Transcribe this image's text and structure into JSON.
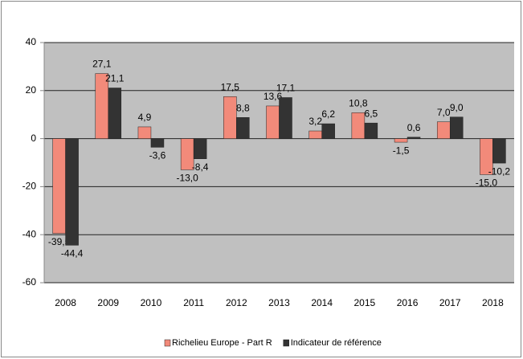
{
  "chart_data": {
    "type": "bar",
    "categories": [
      "2008",
      "2009",
      "2010",
      "2011",
      "2012",
      "2013",
      "2014",
      "2015",
      "2016",
      "2017",
      "2018"
    ],
    "series": [
      {
        "name": "Richelieu Europe - Part R",
        "color": "#f28a7a",
        "values": [
          -39.5,
          27.1,
          4.9,
          -13.0,
          17.5,
          13.6,
          3.2,
          10.8,
          -1.5,
          7.0,
          -15.0
        ],
        "value_labels": [
          "-39,5",
          "27,1",
          "4,9",
          "-13,0",
          "17,5",
          "13,6",
          "3,2",
          "10,8",
          "-1,5",
          "7,0",
          "-15,0"
        ]
      },
      {
        "name": "Indicateur de référence",
        "color": "#333333",
        "values": [
          -44.4,
          21.1,
          -3.6,
          -8.4,
          8.8,
          17.1,
          6.2,
          6.5,
          0.6,
          9.0,
          -10.2
        ],
        "value_labels": [
          "-44,4",
          "21,1",
          "-3,6",
          "-8,4",
          "8,8",
          "17,1",
          "6,2",
          "6,5",
          "0,6",
          "9,0",
          "-10,2"
        ]
      }
    ],
    "ylim": [
      -60,
      40
    ],
    "yticks": [
      40,
      20,
      0,
      -20,
      -40,
      -60
    ],
    "grid": true,
    "legend": "bottom"
  }
}
